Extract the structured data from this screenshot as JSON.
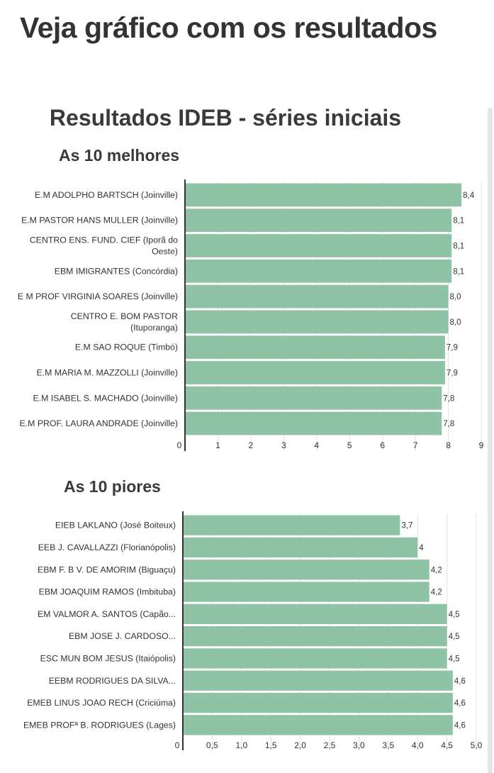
{
  "page": {
    "heading": "Veja gráfico com os resultados"
  },
  "chart_title": "Resultados IDEB - séries iniciais",
  "colors": {
    "bar": "#8fc3a6",
    "axis": "#333333",
    "grid": "#e0e0e0",
    "text": "#333333"
  },
  "chart_data": [
    {
      "type": "bar",
      "orientation": "horizontal",
      "title": "As 10 melhores",
      "categories": [
        [
          "E.M ADOLPHO BARTSCH (Joinville)"
        ],
        [
          "E.M PASTOR HANS MULLER (Joinville)"
        ],
        [
          "CENTRO ENS. FUND. CIEF (Iporã do",
          "Oeste)"
        ],
        [
          "EBM IMIGRANTES (Concórdia)"
        ],
        [
          "E M PROF VIRGINIA SOARES (Joinville)"
        ],
        [
          "CENTRO E. BOM PASTOR",
          "(Ituporanga)"
        ],
        [
          "E.M SAO ROQUE (Timbó)"
        ],
        [
          "E.M MARIA M. MAZZOLLI (Joinville)"
        ],
        [
          "E.M ISABEL S. MACHADO (Joinville)"
        ],
        [
          "E.M PROF. LAURA ANDRADE (Joinville)"
        ]
      ],
      "values": [
        8.4,
        8.1,
        8.1,
        8.1,
        8.0,
        8.0,
        7.9,
        7.9,
        7.8,
        7.8
      ],
      "value_labels": [
        "8,4",
        "8,1",
        "8,1",
        "8,1",
        "8,0",
        "8,0",
        "7,9",
        "7,9",
        "7,8",
        "7,8"
      ],
      "xlim": [
        0,
        9
      ],
      "ticks": [
        0,
        1,
        2,
        3,
        4,
        5,
        6,
        7,
        8,
        9
      ],
      "tick_labels": [
        "0",
        "1",
        "2",
        "3",
        "4",
        "5",
        "6",
        "7",
        "8",
        "9"
      ],
      "grid": true
    },
    {
      "type": "bar",
      "orientation": "horizontal",
      "title": "As 10 piores",
      "categories": [
        [
          "EIEB LAKLANO (José Boiteux)"
        ],
        [
          "EEB J. CAVALLAZZI (Florianópolis)"
        ],
        [
          "EBM F. B V. DE AMORIM (Biguaçu)"
        ],
        [
          "EBM JOAQUIM RAMOS (Imbituba)"
        ],
        [
          "EM VALMOR A. SANTOS (Capão..."
        ],
        [
          "EBM JOSE J. CARDOSO..."
        ],
        [
          "ESC MUN BOM JESUS (Itaiópolis)"
        ],
        [
          "EEBM RODRIGUES DA SILVA..."
        ],
        [
          "EMEB LINUS JOAO RECH (Criciúma)"
        ],
        [
          "EMEB PROFª B. RODRIGUES (Lages)"
        ]
      ],
      "values": [
        3.7,
        4.0,
        4.2,
        4.2,
        4.5,
        4.5,
        4.5,
        4.6,
        4.6,
        4.6
      ],
      "value_labels": [
        "3,7",
        "4",
        "4,2",
        "4,2",
        "4,5",
        "4,5",
        "4,5",
        "4,6",
        "4,6",
        "4,6"
      ],
      "xlim": [
        0,
        5
      ],
      "ticks": [
        0,
        0.5,
        1,
        1.5,
        2,
        2.5,
        3,
        3.5,
        4,
        4.5,
        5
      ],
      "tick_labels": [
        "0",
        "0,5",
        "1,0",
        "1,5",
        "2,0",
        "2,5",
        "3,0",
        "3,5",
        "4,0",
        "4,5",
        "5,0"
      ],
      "grid": true
    }
  ]
}
